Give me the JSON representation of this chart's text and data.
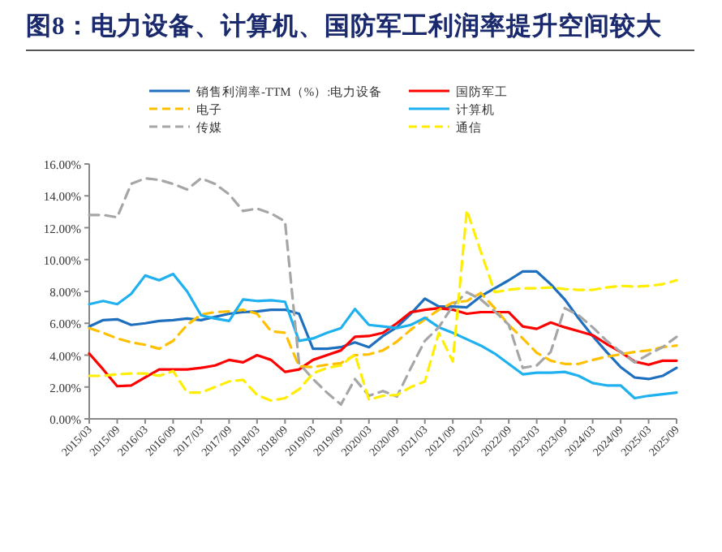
{
  "chart_data": {
    "type": "line",
    "title": "图8：电力设备、计算机、国防军工利润率提升空间较大",
    "categories": [
      "2015/03",
      null,
      "2015/09",
      null,
      "2016/03",
      null,
      "2016/09",
      null,
      "2017/03",
      null,
      "2017/09",
      null,
      "2018/03",
      null,
      "2018/09",
      null,
      "2019/03",
      null,
      "2019/09",
      null,
      "2020/03",
      null,
      "2020/09",
      null,
      "2021/03",
      null,
      "2021/09",
      null,
      "2022/03",
      null,
      "2022/09",
      null,
      "2023/03",
      null,
      "2023/09",
      null,
      "2024/03",
      null,
      "2024/09",
      null,
      "2025/03",
      null,
      "2025/09"
    ],
    "series": [
      {
        "name": "销售利润率-TTM（%）:电力设备",
        "color": "#1f6fbf",
        "line_style": "solid",
        "values": [
          5.8,
          6.2,
          6.25,
          5.9,
          6.0,
          6.15,
          6.2,
          6.3,
          6.2,
          6.4,
          6.6,
          6.7,
          6.75,
          6.85,
          6.85,
          6.6,
          4.4,
          4.4,
          4.5,
          4.8,
          4.5,
          5.2,
          5.75,
          6.6,
          7.55,
          7.05,
          7.05,
          7.0,
          7.7,
          8.2,
          8.7,
          9.25,
          9.25,
          8.45,
          7.5,
          6.3,
          5.2,
          4.2,
          3.25,
          2.6,
          2.5,
          2.7,
          3.2
        ]
      },
      {
        "name": "国防军工",
        "color": "#ff0000",
        "line_style": "solid",
        "values": [
          4.1,
          3.1,
          2.05,
          2.1,
          2.6,
          3.1,
          3.1,
          3.1,
          3.2,
          3.35,
          3.7,
          3.55,
          4.0,
          3.7,
          2.95,
          3.1,
          3.7,
          4.0,
          4.3,
          5.15,
          5.2,
          5.4,
          6.0,
          6.7,
          6.85,
          6.95,
          6.85,
          6.6,
          6.7,
          6.7,
          6.7,
          5.8,
          5.65,
          6.05,
          5.75,
          5.5,
          5.25,
          4.7,
          4.2,
          3.6,
          3.4,
          3.65,
          3.65
        ]
      },
      {
        "name": "电子",
        "color": "#ffc000",
        "line_style": "dashed",
        "values": [
          5.7,
          5.4,
          5.05,
          4.8,
          4.65,
          4.4,
          4.9,
          5.9,
          6.55,
          6.7,
          6.75,
          6.85,
          6.6,
          5.5,
          5.4,
          3.3,
          3.25,
          3.4,
          3.5,
          4.0,
          4.05,
          4.3,
          4.85,
          5.6,
          6.25,
          6.85,
          7.3,
          7.4,
          7.9,
          6.95,
          5.9,
          5.05,
          4.15,
          3.65,
          3.45,
          3.45,
          3.7,
          3.9,
          4.05,
          4.2,
          4.3,
          4.5,
          4.6
        ]
      },
      {
        "name": "计算机",
        "color": "#1fb0f0",
        "line_style": "solid",
        "values": [
          7.2,
          7.4,
          7.2,
          7.85,
          9.0,
          8.7,
          9.1,
          8.0,
          6.5,
          6.3,
          6.15,
          7.5,
          7.4,
          7.45,
          7.35,
          4.9,
          5.05,
          5.4,
          5.7,
          6.9,
          5.9,
          5.8,
          5.7,
          5.9,
          6.35,
          5.75,
          5.4,
          5.0,
          4.6,
          4.1,
          3.45,
          2.8,
          2.9,
          2.9,
          2.95,
          2.7,
          2.25,
          2.1,
          2.1,
          1.3,
          1.45,
          1.55,
          1.65
        ]
      },
      {
        "name": "传媒",
        "color": "#a6a6a6",
        "line_style": "dashed",
        "values": [
          12.8,
          12.8,
          12.65,
          14.75,
          15.1,
          15.0,
          14.75,
          14.4,
          15.1,
          14.75,
          14.1,
          13.05,
          13.2,
          12.9,
          12.4,
          3.5,
          2.5,
          1.65,
          0.9,
          2.5,
          1.45,
          1.75,
          1.4,
          3.2,
          4.9,
          5.75,
          7.1,
          7.95,
          7.5,
          6.75,
          5.9,
          3.2,
          3.35,
          4.2,
          6.95,
          6.5,
          5.75,
          4.9,
          4.2,
          3.55,
          4.05,
          4.5,
          5.15
        ]
      },
      {
        "name": "通信",
        "color": "#ffee00",
        "line_style": "dashed",
        "values": [
          2.7,
          2.7,
          2.8,
          2.85,
          2.85,
          2.7,
          3.0,
          1.65,
          1.65,
          2.0,
          2.35,
          2.45,
          1.5,
          1.15,
          1.3,
          1.85,
          2.85,
          3.2,
          3.35,
          4.05,
          1.2,
          1.45,
          1.5,
          2.0,
          2.35,
          5.4,
          3.6,
          13.1,
          10.5,
          7.95,
          8.1,
          8.2,
          8.2,
          8.25,
          8.15,
          8.1,
          8.1,
          8.25,
          8.35,
          8.3,
          8.35,
          8.45,
          8.7
        ]
      }
    ],
    "ylim": [
      0,
      16
    ],
    "yticks": [
      {
        "value": 0,
        "label": "0.00%"
      },
      {
        "value": 2,
        "label": "2.00%"
      },
      {
        "value": 4,
        "label": "4.00%"
      },
      {
        "value": 6,
        "label": "6.00%"
      },
      {
        "value": 8,
        "label": "8.00%"
      },
      {
        "value": 10,
        "label": "10.00%"
      },
      {
        "value": 12,
        "label": "12.00%"
      },
      {
        "value": 14,
        "label": "14.00%"
      },
      {
        "value": 16,
        "label": "16.00%"
      }
    ],
    "legend": "top"
  }
}
